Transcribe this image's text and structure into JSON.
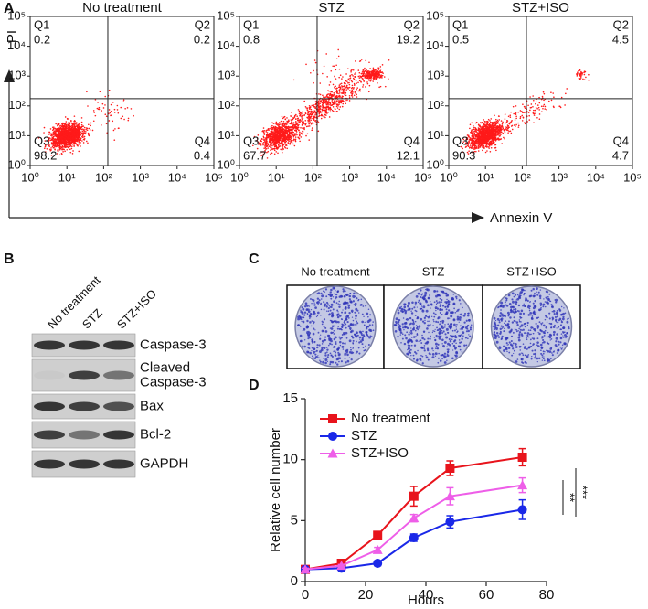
{
  "panel_labels": [
    "A",
    "B",
    "C",
    "D"
  ],
  "flow": {
    "type": "scatter",
    "x_label": "Annexin V",
    "y_label": "PI",
    "log_scale": true,
    "color": "#ff1a1a",
    "xlim": [
      1,
      100000
    ],
    "ylim": [
      1,
      100000
    ],
    "xticks": [
      {
        "value": 1,
        "label": "10⁰"
      },
      {
        "value": 10,
        "label": "10¹"
      },
      {
        "value": 100,
        "label": "10²"
      },
      {
        "value": 1000,
        "label": "10³"
      },
      {
        "value": 10000,
        "label": "10⁴"
      },
      {
        "value": 100000,
        "label": "10⁵"
      }
    ],
    "yticks": [
      {
        "value": 1,
        "label": "10⁰"
      },
      {
        "value": 10,
        "label": "10¹"
      },
      {
        "value": 100,
        "label": "10²"
      },
      {
        "value": 1000,
        "label": "10³"
      },
      {
        "value": 10000,
        "label": "10⁴"
      },
      {
        "value": 100000,
        "label": "10⁵"
      }
    ],
    "gate_x": 130,
    "gate_y": 175,
    "quadrant_names": [
      "Q1",
      "Q2",
      "Q3",
      "Q4"
    ],
    "plots": [
      {
        "title": "No treatment",
        "quadrants": [
          0.2,
          0.2,
          98.2,
          0.4
        ]
      },
      {
        "title": "STZ",
        "quadrants": [
          0.8,
          19.2,
          67.7,
          12.1
        ]
      },
      {
        "title": "STZ+ISO",
        "quadrants": [
          0.5,
          4.5,
          90.3,
          4.7
        ]
      }
    ]
  },
  "blot": {
    "lanes": [
      "No treatment",
      "STZ",
      "STZ+ISO"
    ],
    "proteins": [
      [
        "Caspase-3"
      ],
      [
        "Cleaved",
        "Caspase-3"
      ],
      [
        "Bax"
      ],
      [
        "Bcl-2"
      ],
      [
        "GAPDH"
      ]
    ]
  },
  "colony": {
    "labels": [
      "No treatment",
      "STZ",
      "STZ+ISO"
    ]
  },
  "chart_data": {
    "type": "line",
    "x_label": "Hours",
    "y_label": "Relative cell number",
    "x": [
      0,
      12,
      24,
      36,
      48,
      72
    ],
    "xlim": [
      0,
      80
    ],
    "xticks": [
      0,
      20,
      40,
      60,
      80
    ],
    "ylim": [
      0,
      15
    ],
    "yticks": [
      0,
      5,
      10,
      15
    ],
    "legend": "upper left",
    "series": [
      {
        "name": "No treatment",
        "color": "#e8141c",
        "marker": "square",
        "values": [
          1,
          1.5,
          3.8,
          7.0,
          9.3,
          10.2
        ],
        "errors": [
          0.1,
          0.2,
          0.3,
          0.8,
          0.6,
          0.7
        ]
      },
      {
        "name": "STZ",
        "color": "#1a28e8",
        "marker": "circle",
        "values": [
          1,
          1.1,
          1.5,
          3.6,
          4.9,
          5.9
        ],
        "errors": [
          0.1,
          0.1,
          0.2,
          0.3,
          0.5,
          0.8
        ]
      },
      {
        "name": "STZ+ISO",
        "color": "#ee5ee8",
        "marker": "triangle",
        "values": [
          1,
          1.3,
          2.6,
          5.2,
          7.0,
          7.9
        ],
        "errors": [
          0.1,
          0.1,
          0.2,
          0.3,
          0.7,
          0.6
        ]
      }
    ],
    "annotations": [
      "**",
      "***"
    ]
  }
}
